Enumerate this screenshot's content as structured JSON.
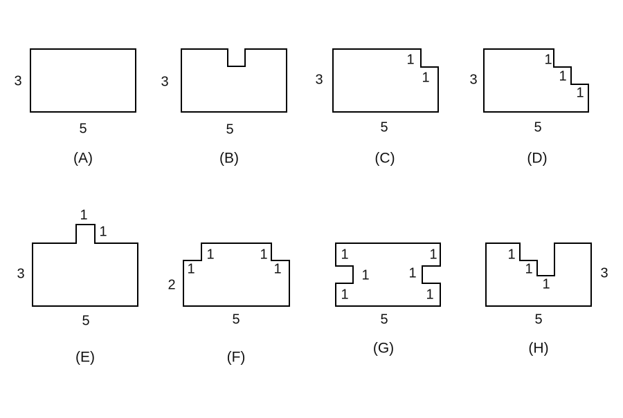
{
  "figures": [
    {
      "id": "A",
      "caption": "(A)",
      "side_labels": [
        "3",
        "5"
      ]
    },
    {
      "id": "B",
      "caption": "(B)",
      "side_labels": [
        "3",
        "5"
      ]
    },
    {
      "id": "C",
      "caption": "(C)",
      "side_labels": [
        "3",
        "5",
        "1",
        "1"
      ]
    },
    {
      "id": "D",
      "caption": "(D)",
      "side_labels": [
        "3",
        "5",
        "1",
        "1",
        "1"
      ]
    },
    {
      "id": "E",
      "caption": "(E)",
      "side_labels": [
        "3",
        "5",
        "1",
        "1"
      ]
    },
    {
      "id": "F",
      "caption": "(F)",
      "side_labels": [
        "2",
        "5",
        "1",
        "1",
        "1",
        "1"
      ]
    },
    {
      "id": "G",
      "caption": "(G)",
      "side_labels": [
        "5",
        "1",
        "1",
        "1",
        "1",
        "1",
        "1"
      ]
    },
    {
      "id": "H",
      "caption": "(H)",
      "side_labels": [
        "3",
        "5",
        "1",
        "1",
        "1"
      ]
    }
  ]
}
